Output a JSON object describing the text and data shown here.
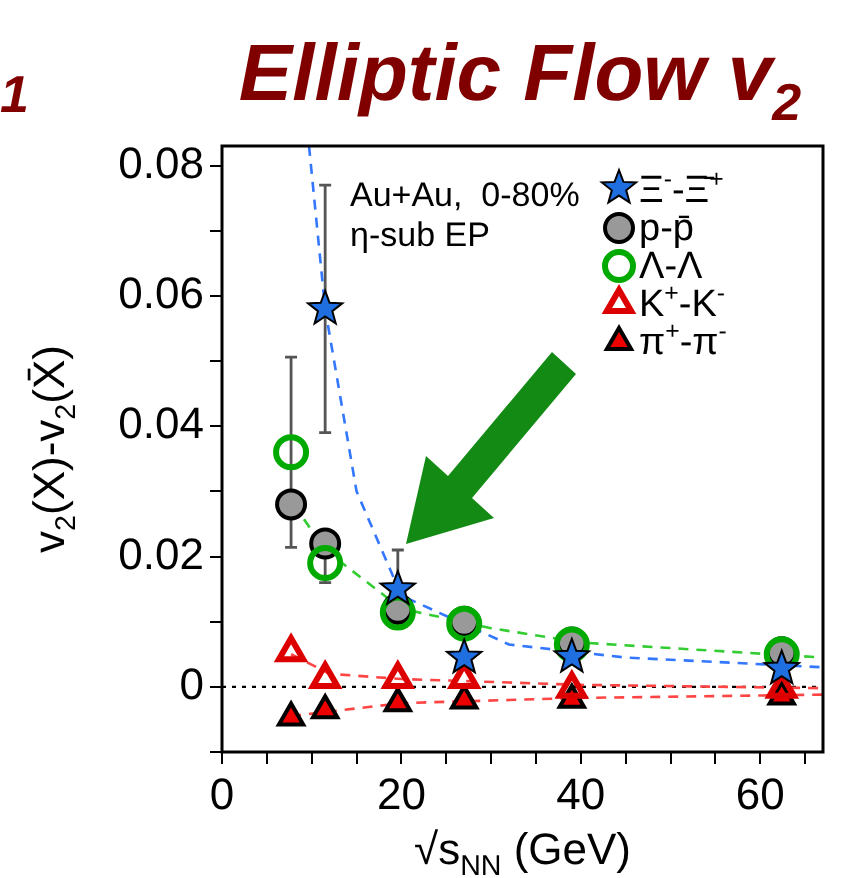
{
  "chart_data": {
    "type": "scatter",
    "title": "Elliptic Flow v$_{2}$",
    "xlabel": "√s$_{NN}$ (GeV)",
    "ylabel": "v$_{2}$(X)-v$_{2}$(X̄)",
    "annotations": [
      "1",
      "Au+Au,  0-80%",
      "η-sub EP"
    ],
    "x": [
      7.7,
      11.5,
      19.6,
      27,
      39,
      62.4
    ],
    "series": [
      {
        "name": "Ξ$^{-}$-Ξ̄$^{+}$",
        "color": "#1f6fe0",
        "marker": "star",
        "x": [
          11.5,
          19.6,
          27,
          39,
          62.4
        ],
        "values": [
          0.058,
          0.015,
          0.0045,
          0.0046,
          0.0028
        ],
        "errors": [
          0.019,
          0.006,
          null,
          null,
          null
        ]
      },
      {
        "name": "p-p̄",
        "color": "#999999",
        "marker": "circle",
        "values": [
          0.028,
          0.022,
          0.012,
          0.01,
          0.0068,
          0.0053
        ]
      },
      {
        "name": "Λ-Λ",
        "color": "#00aa00",
        "marker": "circle",
        "values": [
          0.036,
          0.019,
          0.0114,
          0.0097,
          0.0065,
          0.005
        ],
        "errors": [
          0.0146,
          0.003,
          null,
          null,
          null,
          null
        ]
      },
      {
        "name": "K$^{+}$-K$^{-}$",
        "color": "#dd0000",
        "marker": "triangle",
        "values": [
          0.0053,
          0.0012,
          0.0012,
          0.0012,
          -0.0003,
          -0.0003
        ]
      },
      {
        "name": "π$^{+}$-π$^{-}$",
        "color": "#ee0000",
        "marker": "triangle",
        "values": [
          -0.0047,
          -0.0036,
          -0.0025,
          -0.0021,
          -0.002,
          -0.0015
        ]
      },
      {
        "type": "line",
        "color": "#3377ff",
        "line_style": "dashed",
        "marker": "none",
        "x": [
          9.7,
          11.5,
          15,
          20,
          32,
          45,
          67
        ],
        "values": [
          0.083,
          0.058,
          0.03,
          0.014,
          0.0065,
          0.0045,
          0.003
        ]
      },
      {
        "type": "line",
        "color": "#33cc33",
        "line_style": "dashed",
        "marker": "none",
        "x": [
          8,
          11.5,
          20,
          30,
          40,
          67
        ],
        "values": [
          0.028,
          0.021,
          0.012,
          0.009,
          0.0068,
          0.0045
        ]
      },
      {
        "type": "line",
        "color": "#ff4444",
        "line_style": "dashed",
        "marker": "none",
        "x": [
          7.7,
          12,
          20,
          40,
          67
        ],
        "values": [
          0.005,
          0.002,
          0.0012,
          0.0003,
          -0.0002
        ]
      },
      {
        "type": "line",
        "color": "#ff4444",
        "line_style": "dashed",
        "marker": "none",
        "x": [
          7.7,
          20,
          40,
          67
        ],
        "values": [
          -0.0045,
          -0.0025,
          -0.0017,
          -0.0012
        ]
      }
    ],
    "ref_lines": [
      {
        "axis": "y",
        "value": 0,
        "color": "#000000",
        "line_style": "dotted"
      }
    ],
    "xlim": [
      0,
      67
    ],
    "xticks": [
      0,
      {
        "value": 5,
        "label": null
      },
      {
        "value": 10,
        "label": null
      },
      {
        "value": 15,
        "label": null
      },
      20,
      {
        "value": 25,
        "label": null
      },
      {
        "value": 30,
        "label": null
      },
      {
        "value": 35,
        "label": null
      },
      40,
      {
        "value": 45,
        "label": null
      },
      {
        "value": 50,
        "label": null
      },
      {
        "value": 55,
        "label": null
      },
      60,
      {
        "value": 65,
        "label": null
      }
    ],
    "ylim": [
      -0.01,
      0.083
    ],
    "yticks": [
      {
        "value": -0.01,
        "label": null
      },
      0,
      {
        "value": 0.01,
        "label": null
      },
      0.02,
      {
        "value": 0.03,
        "label": null
      },
      0.04,
      {
        "value": 0.05,
        "label": null
      },
      0.06,
      {
        "value": 0.07,
        "label": null
      },
      0.08
    ],
    "grid": false,
    "legend": "top right"
  }
}
